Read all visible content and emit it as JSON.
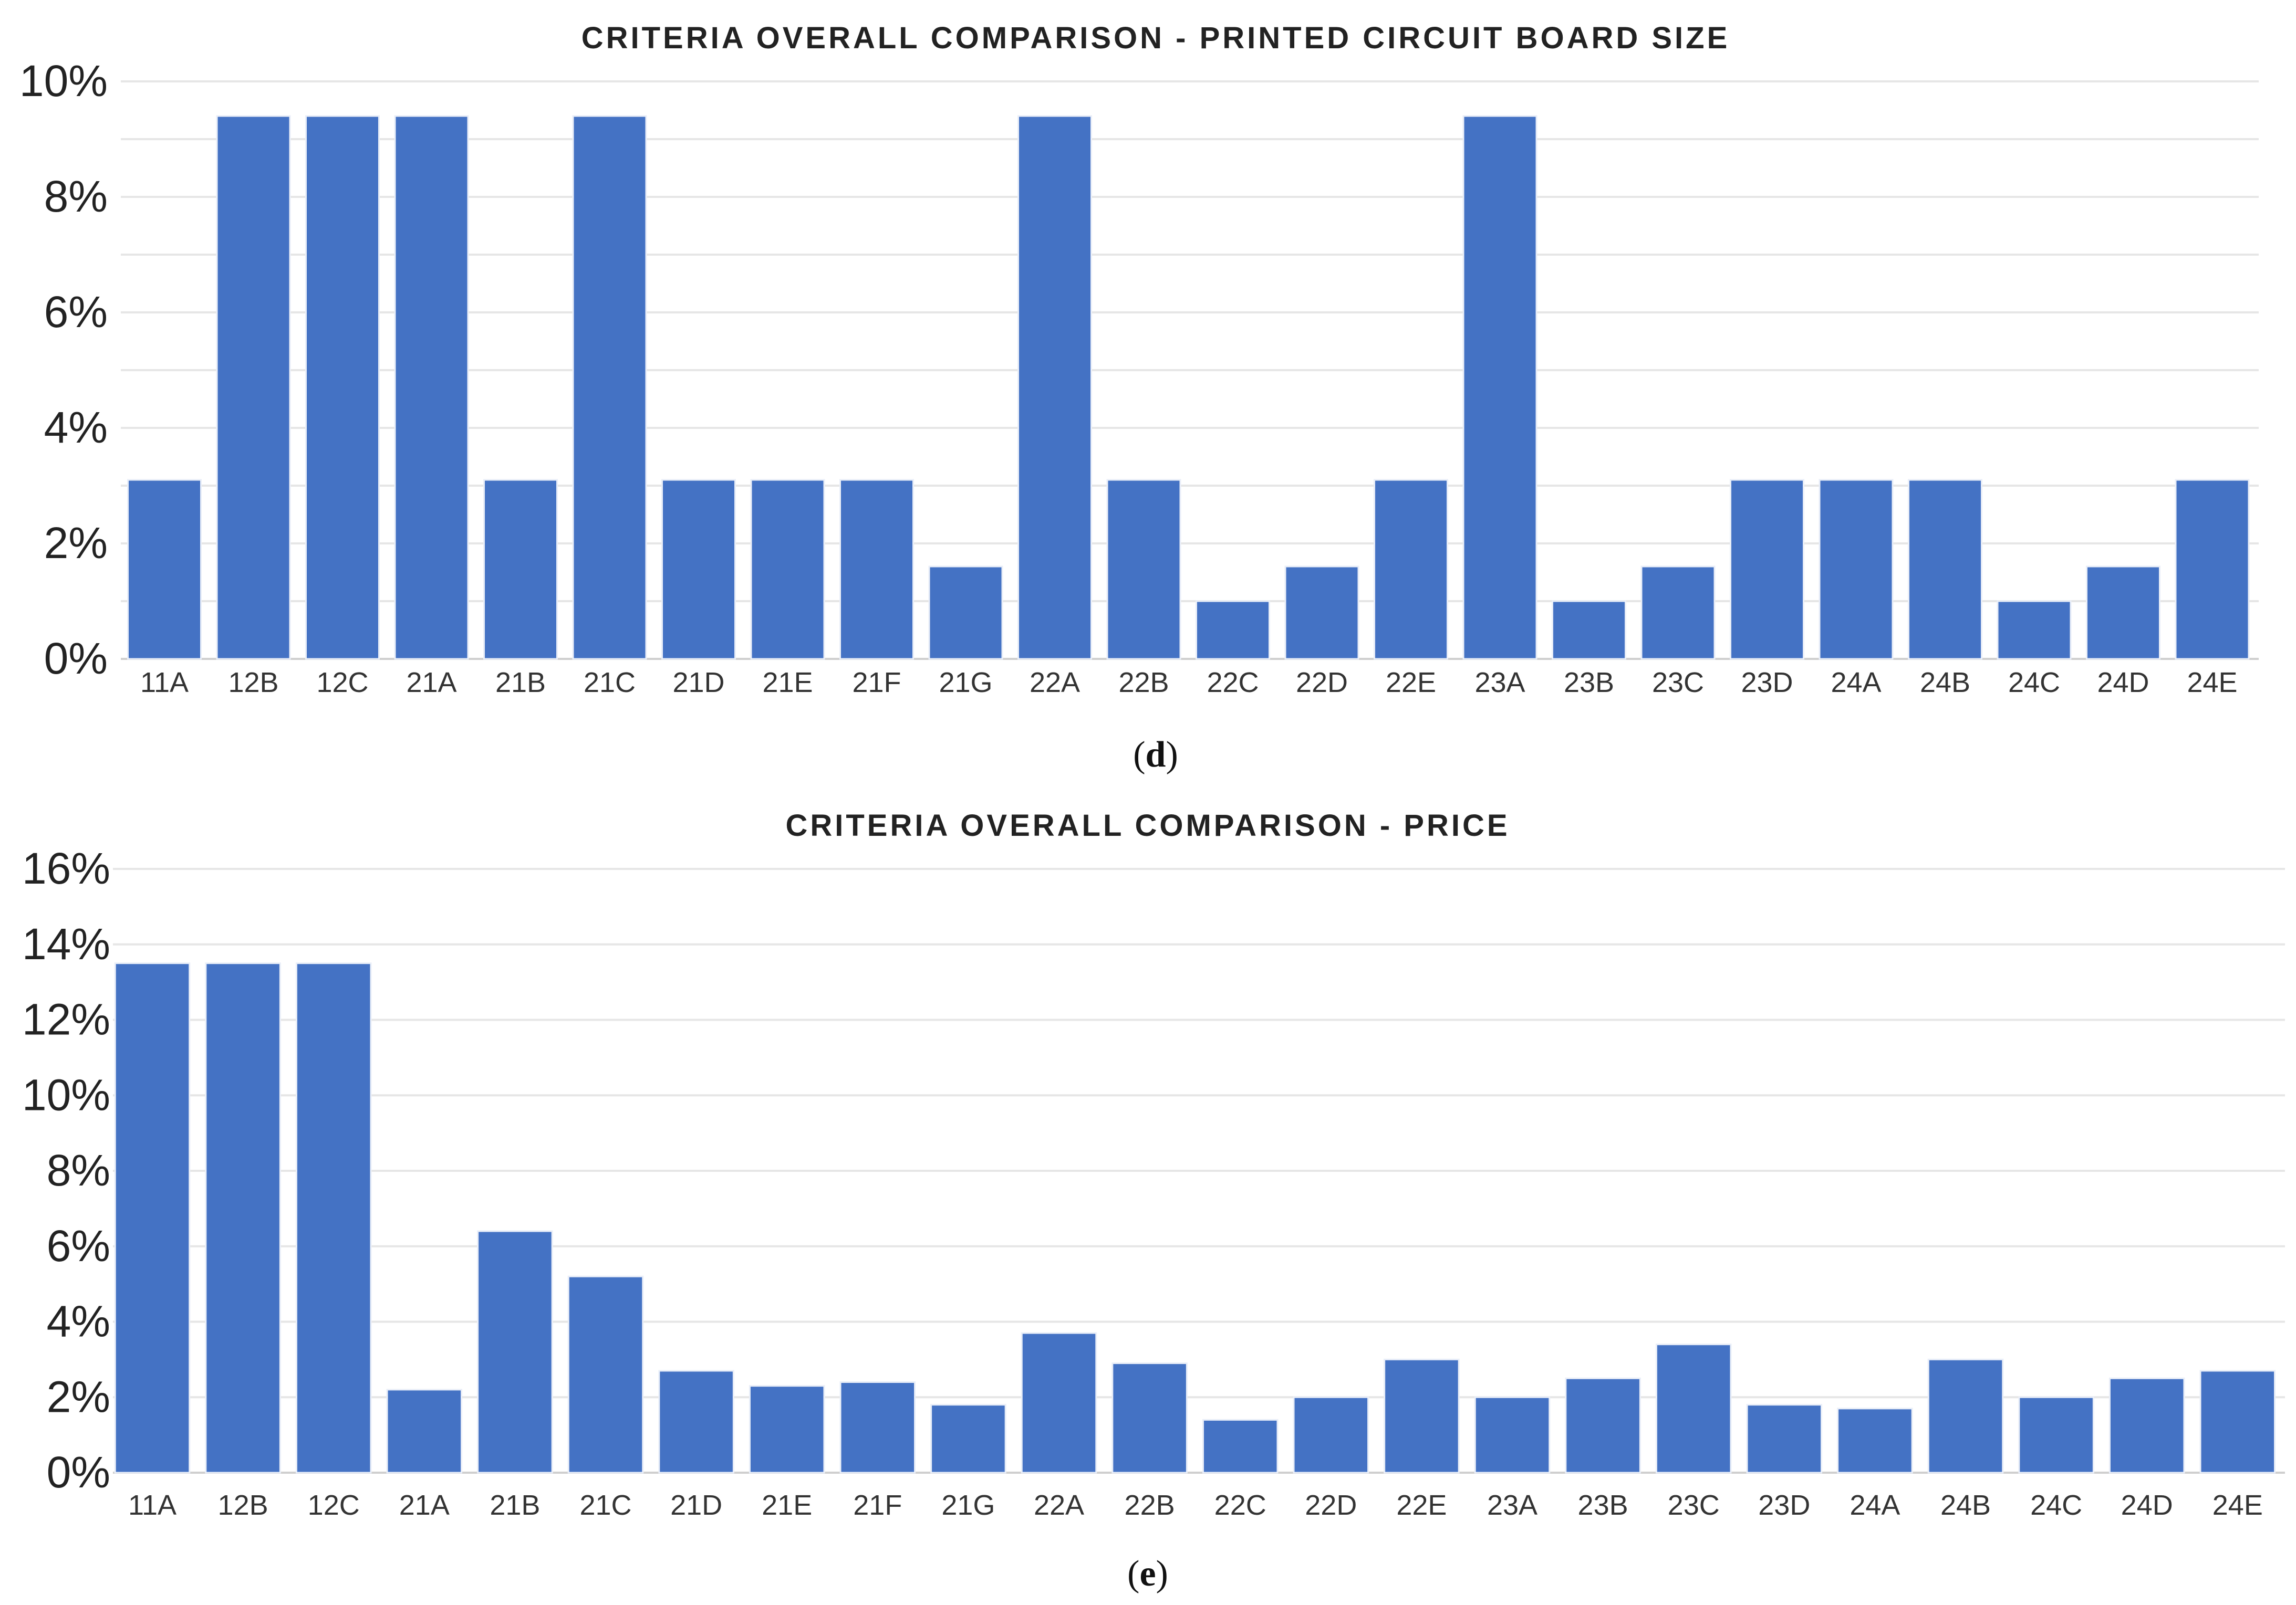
{
  "colors": {
    "bar": "#4472c4",
    "grid": "#e6e6e6",
    "text": "#222222"
  },
  "chart_data": [
    {
      "type": "bar",
      "title": "CRITERIA OVERALL COMPARISON - PRINTED CIRCUIT BOARD SIZE",
      "panel_label": "d",
      "xlabel": "",
      "ylabel": "",
      "ylim": [
        0,
        10
      ],
      "y_ticks": [
        0,
        2,
        4,
        6,
        8,
        10
      ],
      "y_tick_labels": [
        "0%",
        "2%",
        "4%",
        "6%",
        "8%",
        "10%"
      ],
      "gridlines": [
        1,
        2,
        3,
        4,
        5,
        6,
        7,
        8,
        9,
        10
      ],
      "categories": [
        "11A",
        "12B",
        "12C",
        "21A",
        "21B",
        "21C",
        "21D",
        "21E",
        "21F",
        "21G",
        "22A",
        "22B",
        "22C",
        "22D",
        "22E",
        "23A",
        "23B",
        "23C",
        "23D",
        "24A",
        "24B",
        "24C",
        "24D",
        "24E"
      ],
      "values": [
        3.1,
        9.4,
        9.4,
        9.4,
        3.1,
        9.4,
        3.1,
        3.1,
        3.1,
        1.6,
        9.4,
        3.1,
        1.0,
        1.6,
        3.1,
        9.4,
        1.0,
        1.6,
        3.1,
        3.1,
        3.1,
        1.0,
        1.6,
        3.1
      ]
    },
    {
      "type": "bar",
      "title": "CRITERIA OVERALL COMPARISON - PRICE",
      "panel_label": "e",
      "xlabel": "",
      "ylabel": "",
      "ylim": [
        0,
        16
      ],
      "y_ticks": [
        0,
        2,
        4,
        6,
        8,
        10,
        12,
        14,
        16
      ],
      "y_tick_labels": [
        "0%",
        "2%",
        "4%",
        "6%",
        "8%",
        "10%",
        "12%",
        "14%",
        "16%"
      ],
      "gridlines": [
        2,
        4,
        6,
        8,
        10,
        12,
        14,
        16
      ],
      "categories": [
        "11A",
        "12B",
        "12C",
        "21A",
        "21B",
        "21C",
        "21D",
        "21E",
        "21F",
        "21G",
        "22A",
        "22B",
        "22C",
        "22D",
        "22E",
        "23A",
        "23B",
        "23C",
        "23D",
        "24A",
        "24B",
        "24C",
        "24D",
        "24E"
      ],
      "values": [
        13.5,
        13.5,
        13.5,
        2.2,
        6.4,
        5.2,
        2.7,
        2.3,
        2.4,
        1.8,
        3.7,
        2.9,
        1.4,
        2.0,
        3.0,
        2.0,
        2.5,
        3.4,
        1.8,
        1.7,
        3.0,
        2.0,
        2.5,
        2.7
      ]
    }
  ]
}
